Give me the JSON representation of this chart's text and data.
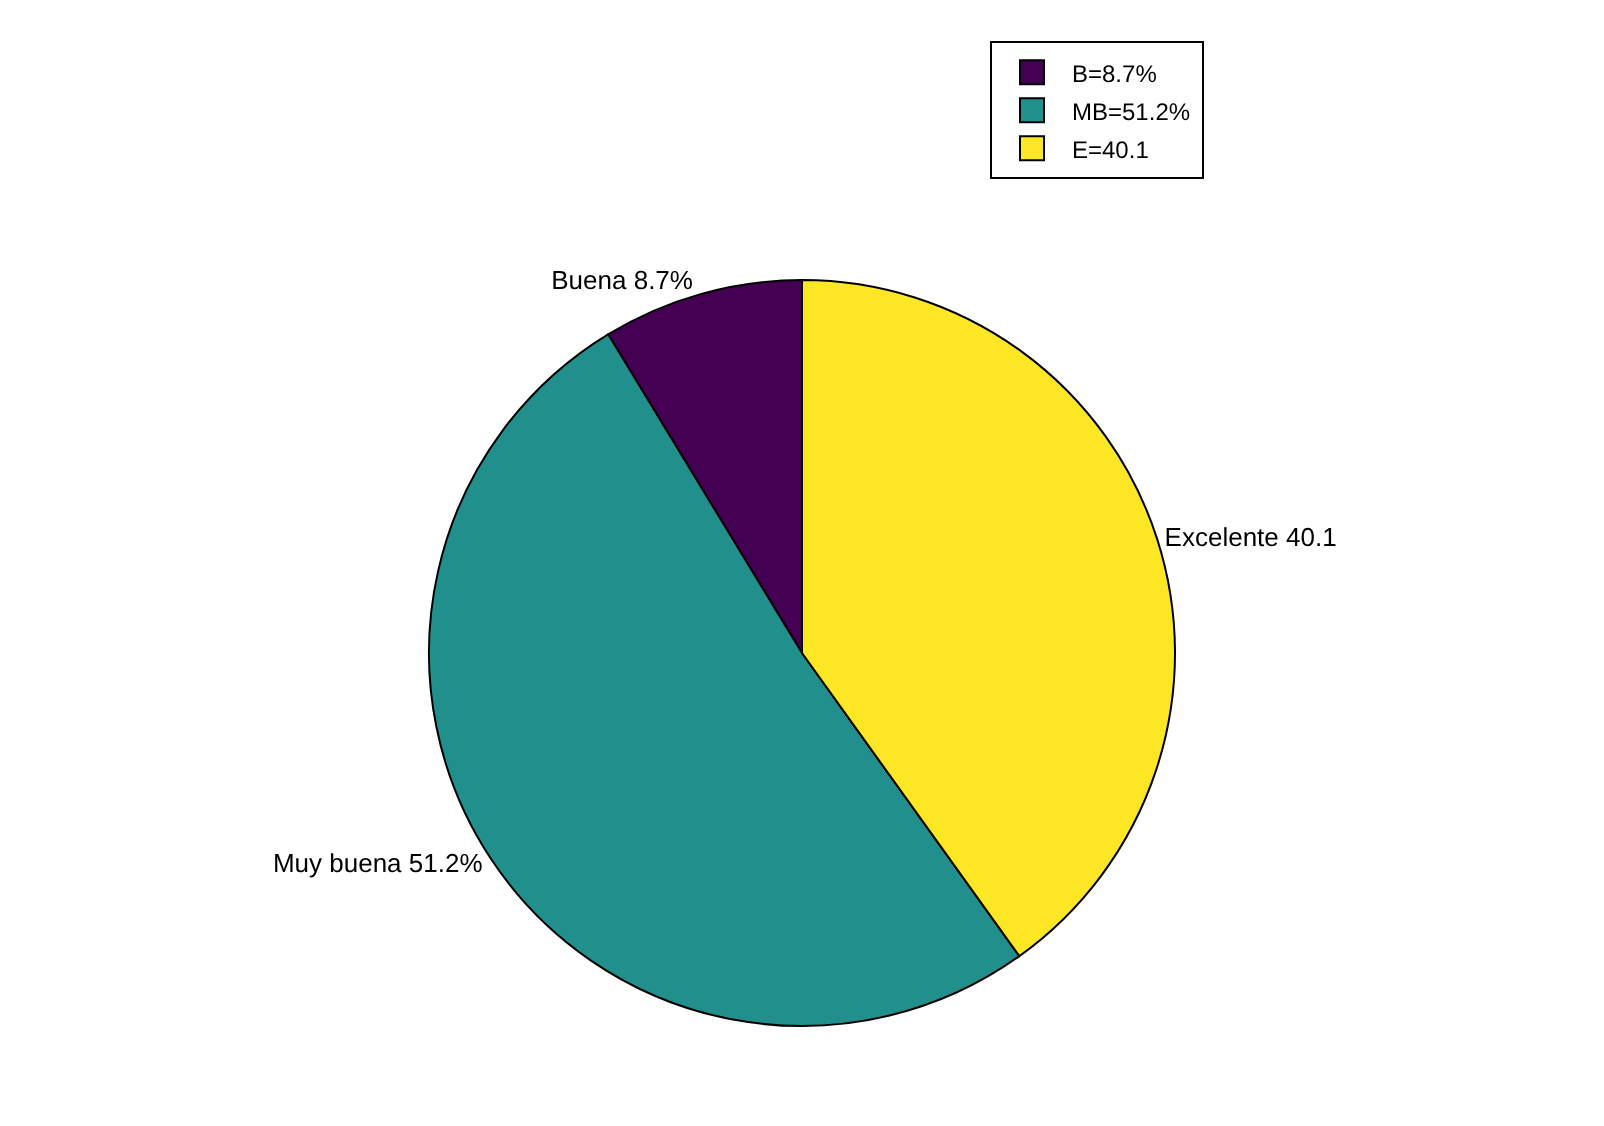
{
  "chart_data": {
    "type": "pie",
    "categories": [
      "B=8.7%",
      "MB=51.2%",
      "E=40.1"
    ],
    "values": [
      8.7,
      51.2,
      40.1
    ],
    "colors": [
      "#440154",
      "#21908d",
      "#fde725"
    ],
    "value_labels": [
      "Buena 8.7%",
      "Muy buena 51.2%",
      "Excelente 40.1"
    ],
    "legend": "top right"
  }
}
